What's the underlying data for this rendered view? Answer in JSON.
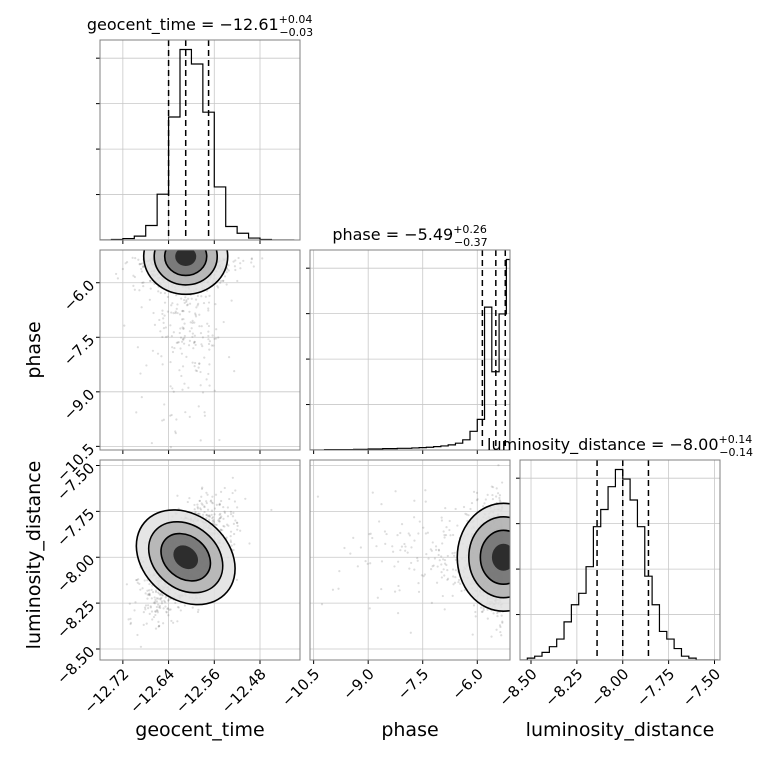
{
  "chart_data": {
    "type": "corner",
    "parameters": [
      "geocent_time",
      "phase",
      "luminosity_distance"
    ],
    "axis_labels": {
      "geocent_time": "geocent_time",
      "phase": "phase",
      "luminosity_distance": "luminosity_distance"
    },
    "titles": {
      "geocent_time": {
        "prefix": "geocent_time = −12.61",
        "plus": "+0.04",
        "minus": "−0.03"
      },
      "phase": {
        "prefix": "phase = −5.49",
        "plus": "+0.26",
        "minus": "−0.37"
      },
      "luminosity_distance": {
        "prefix": "luminosity_distance = −8.00",
        "plus": "+0.14",
        "minus": "−0.14"
      }
    },
    "ranges": {
      "geocent_time": [
        -12.76,
        -12.41
      ],
      "phase": [
        -10.6,
        -5.1
      ],
      "luminosity_distance": [
        -8.56,
        -7.47
      ]
    },
    "ticks": {
      "geocent_time": [
        -12.72,
        -12.64,
        -12.56,
        -12.48
      ],
      "phase": [
        -10.5,
        -9.0,
        -7.5,
        -6.0
      ],
      "luminosity_distance": [
        -8.5,
        -8.25,
        -8.0,
        -7.75,
        -7.5
      ]
    },
    "tick_labels": {
      "geocent_time": [
        "−12.72",
        "−12.64",
        "−12.56",
        "−12.48"
      ],
      "phase": [
        "−10.5",
        "−9.0",
        "−7.5",
        "−6.0"
      ],
      "luminosity_distance_x": [
        "−8.50",
        "−8.25",
        "−8.00",
        "−7.75",
        "−7.50"
      ],
      "luminosity_distance_y": [
        "−8.50",
        "−8.25",
        "−8.00",
        "−7.75",
        "−7.50"
      ]
    },
    "quantiles": {
      "geocent_time": [
        -12.64,
        -12.61,
        -12.57
      ],
      "phase": [
        -5.86,
        -5.49,
        -5.23
      ],
      "luminosity_distance": [
        -8.14,
        -8.0,
        -7.86
      ]
    },
    "histograms": {
      "geocent_time": {
        "bins": [
          -12.76,
          -12.74,
          -12.72,
          -12.7,
          -12.68,
          -12.66,
          -12.64,
          -12.62,
          -12.6,
          -12.58,
          -12.56,
          -12.54,
          -12.52,
          -12.5,
          -12.48,
          -12.46,
          -12.44,
          -12.42
        ],
        "counts": [
          0,
          1,
          3,
          8,
          30,
          95,
          255,
          395,
          365,
          265,
          110,
          28,
          14,
          4,
          1,
          0,
          0
        ]
      },
      "phase": {
        "bins": [
          -10.6,
          -10.4,
          -10.2,
          -10.0,
          -9.8,
          -9.6,
          -9.4,
          -9.2,
          -9.0,
          -8.8,
          -8.6,
          -8.4,
          -8.2,
          -8.0,
          -7.8,
          -7.6,
          -7.4,
          -7.2,
          -7.0,
          -6.8,
          -6.6,
          -6.4,
          -6.2,
          -6.0,
          -5.8,
          -5.6,
          -5.4,
          -5.2,
          -5.1
        ],
        "counts": [
          0,
          0,
          1,
          1,
          1,
          1,
          2,
          2,
          3,
          3,
          4,
          4,
          5,
          5,
          6,
          7,
          8,
          10,
          12,
          15,
          20,
          30,
          55,
          90,
          420,
          230,
          400,
          560
        ]
      },
      "luminosity_distance": {
        "bins": [
          -8.56,
          -8.52,
          -8.48,
          -8.44,
          -8.4,
          -8.36,
          -8.32,
          -8.28,
          -8.24,
          -8.2,
          -8.16,
          -8.12,
          -8.08,
          -8.04,
          -8.0,
          -7.96,
          -7.92,
          -7.88,
          -7.84,
          -7.8,
          -7.76,
          -7.72,
          -7.68,
          -7.64,
          -7.6,
          -7.56,
          -7.52,
          -7.48
        ],
        "counts": [
          0,
          2,
          4,
          8,
          14,
          22,
          40,
          58,
          70,
          98,
          140,
          158,
          182,
          200,
          190,
          168,
          140,
          88,
          58,
          30,
          22,
          12,
          4,
          2,
          0,
          0,
          0
        ]
      }
    },
    "contour_levels": [
      "0.5σ",
      "1σ",
      "1.5σ",
      "2σ"
    ],
    "scatter_style": {
      "point_color": "#555555",
      "opacity": 0.2
    },
    "colors": {
      "line": "#000000",
      "grid": "#c8c8c8",
      "frame": "#808080"
    },
    "grid": true
  }
}
